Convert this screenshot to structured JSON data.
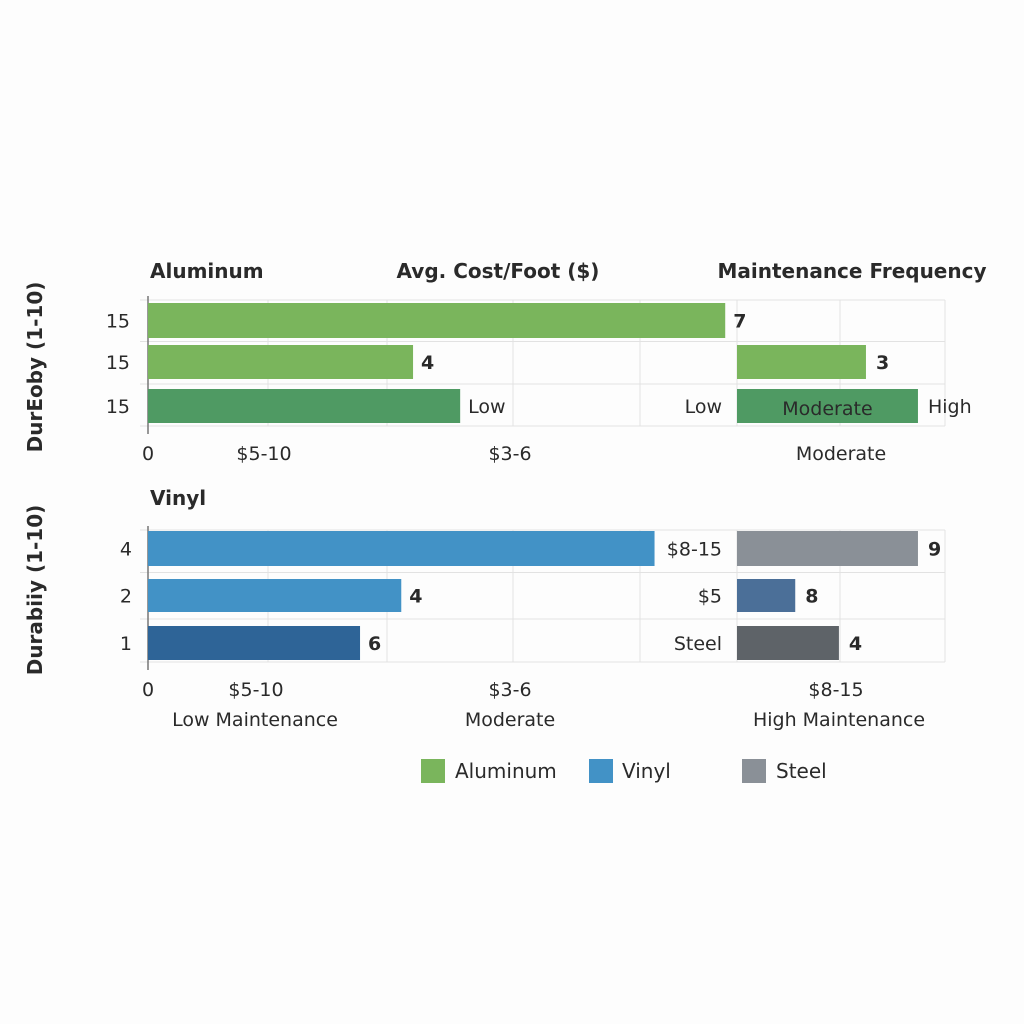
{
  "chart_data": {
    "type": "bar",
    "orientation": "horizontal",
    "headers": {
      "cost": "Avg. Cost/Foot ($)",
      "maintenance": "Maintenance Frequency"
    },
    "panels": [
      {
        "title": "Aluminum",
        "ylabel": "DurEoby (1-10)",
        "ytick_labels": [
          "15",
          "15",
          "15"
        ],
        "xtick_labels": [
          "0",
          "$5-10",
          "$3-6",
          "Moderate"
        ],
        "xtick_labels_2": [],
        "scale": [
          0,
          10
        ],
        "rows": [
          {
            "cost_bar": 9.8,
            "cost_color": "#7ab55c",
            "cost_label": "7",
            "cost_label_color": "#6aab4b",
            "cost_label_bold": true,
            "mid_label": "",
            "maint_bar": 0,
            "maint_color": "",
            "maint_inner_label": "",
            "maint_label": ""
          },
          {
            "cost_bar": 4.5,
            "cost_color": "#7ab55c",
            "cost_label": "4",
            "cost_label_color": "#6aab4b",
            "cost_label_bold": true,
            "mid_label": "",
            "maint_bar": 6.2,
            "maint_color": "#7ab55c",
            "maint_inner_label": "",
            "maint_label": "3",
            "maint_label_color": "#6aab4b"
          },
          {
            "cost_bar": 5.3,
            "cost_color": "#4f9a63",
            "cost_label": "Low",
            "cost_label_color": "#2a2a2a",
            "cost_label_bold": false,
            "mid_label": "Low",
            "mid_label_color": "#2a2a2a",
            "maint_bar": 8.7,
            "maint_color": "#4f9a63",
            "maint_inner_label": "Moderate",
            "maint_label": "High",
            "maint_label_color": "#2a2a2a",
            "maint_label_bold": false
          }
        ]
      },
      {
        "title": "Vinyl",
        "ylabel": "Durabiiy (1-10)",
        "ytick_labels": [
          "4",
          "2",
          "1"
        ],
        "xtick_labels": [
          "0",
          "$5-10",
          "$3-6",
          "$8-15"
        ],
        "xtick_labels_2": [
          "Low Maintenance",
          "Moderate",
          "High Maintenance"
        ],
        "scale": [
          0,
          10
        ],
        "rows": [
          {
            "cost_bar": 8.6,
            "cost_color": "#4292c6",
            "cost_label": "",
            "mid_label": "$8-15",
            "mid_label_color": "#3a8fd0",
            "maint_bar": 8.7,
            "maint_color": "#8a9097",
            "maint_inner_label": "",
            "maint_label": "9",
            "maint_label_color": "#2a2a2a",
            "maint_label_bold": true
          },
          {
            "cost_bar": 4.3,
            "cost_color": "#4292c6",
            "cost_label": "4",
            "cost_label_color": "#2f6fa8",
            "cost_label_bold": true,
            "mid_label": "$5",
            "mid_label_color": "#3a8fd0",
            "maint_bar": 2.8,
            "maint_color": "#4b6f98",
            "maint_inner_label": "",
            "maint_label": "8",
            "maint_label_color": "#2a2a2a",
            "maint_label_bold": true
          },
          {
            "cost_bar": 3.6,
            "cost_color": "#2e6497",
            "cost_label": "6",
            "cost_label_color": "#2e6497",
            "cost_label_bold": true,
            "mid_label": "Steel",
            "mid_label_color": "#2a2a2a",
            "maint_bar": 4.9,
            "maint_color": "#5e6368",
            "maint_inner_label": "",
            "maint_label": "4",
            "maint_label_color": "#2a2a2a",
            "maint_label_bold": true
          }
        ]
      }
    ],
    "legend": {
      "position": "bottom",
      "items": [
        {
          "name": "Aluminum",
          "color": "#7ab55c"
        },
        {
          "name": "Vinyl",
          "color": "#4292c6"
        },
        {
          "name": "Steel",
          "color": "#8a9097"
        }
      ]
    },
    "grid": true
  }
}
